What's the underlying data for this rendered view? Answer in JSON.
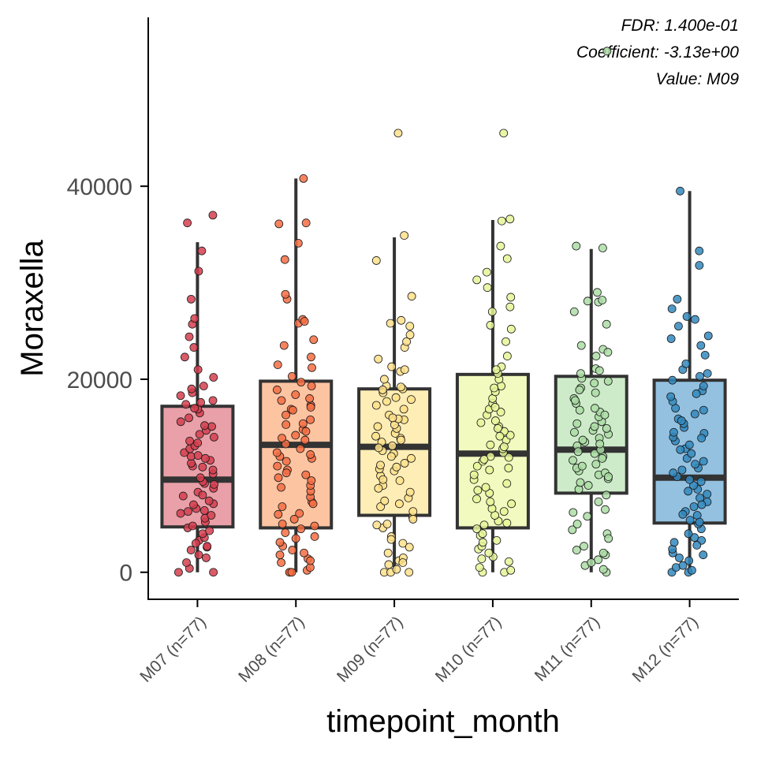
{
  "chart_data": {
    "type": "box",
    "xlabel": "timepoint_month",
    "ylabel": "Moraxella",
    "ylim": [
      -2800,
      57500
    ],
    "yticks": [
      0,
      20000,
      40000
    ],
    "ytick_labels": [
      "0",
      "20000",
      "40000"
    ],
    "grid": false,
    "legend": "none",
    "annotations": [
      "FDR: 1.400e-01",
      "Coefficient: -3.13e+00",
      "Value: M09"
    ],
    "categories": [
      "M07 (n=77)",
      "M08 (n=77)",
      "M09 (n=77)",
      "M10 (n=77)",
      "M11 (n=77)",
      "M12 (n=77)"
    ],
    "boxes": [
      {
        "name": "M07 (n=77)",
        "whisker_low": 0,
        "q1": 4700,
        "median": 9600,
        "q3": 17200,
        "whisker_high": 34200,
        "fill": "#E9A0A8",
        "point_color": "#D53E4F",
        "points": [
          0,
          0,
          400,
          1000,
          1500,
          1800,
          2300,
          2600,
          2700,
          3300,
          3600,
          4000,
          4300,
          4600,
          4800,
          5200,
          5600,
          6100,
          6400,
          6600,
          7100,
          7400,
          7900,
          8300,
          8700,
          9200,
          9400,
          9800,
          10200,
          10600,
          11000,
          11300,
          11600,
          12000,
          12400,
          12800,
          13100,
          13600,
          14000,
          14300,
          14700,
          15100,
          15600,
          16000,
          16500,
          16900,
          17000,
          17400,
          17800,
          18300,
          18600,
          19000,
          19300,
          20200,
          21000,
          22300,
          23300,
          24400,
          25700,
          26300,
          28300,
          31200,
          33300,
          36200,
          37000,
          3000,
          5900,
          8000,
          10900,
          12100,
          13400,
          15200,
          9100,
          7000,
          11800,
          6300,
          17600
        ]
      },
      {
        "name": "M08 (n=77)",
        "whisker_low": 0,
        "q1": 4600,
        "median": 13200,
        "q3": 19800,
        "whisker_high": 40800,
        "fill": "#FDC4A2",
        "point_color": "#F46D43",
        "points": [
          0,
          0,
          0,
          200,
          500,
          1000,
          1400,
          1800,
          2300,
          2700,
          3100,
          3700,
          4100,
          4500,
          5000,
          5500,
          6100,
          6800,
          7300,
          7800,
          8400,
          9000,
          9500,
          10100,
          10600,
          11000,
          11500,
          12000,
          12400,
          12800,
          13300,
          13700,
          14200,
          14800,
          15300,
          15800,
          16300,
          16900,
          17300,
          17800,
          18400,
          18900,
          19300,
          19700,
          21200,
          21500,
          22300,
          23500,
          24100,
          25800,
          26200,
          28300,
          28800,
          32400,
          34100,
          36100,
          36200,
          40800,
          2000,
          3500,
          6000,
          8800,
          11800,
          13900,
          15400,
          17100,
          9800,
          12200,
          18000,
          4800,
          7100,
          14600,
          16800,
          10300,
          26000,
          1200,
          20300
        ]
      },
      {
        "name": "M09 (n=77)",
        "whisker_low": 0,
        "q1": 5900,
        "median": 13000,
        "q3": 19000,
        "whisker_high": 34700,
        "fill": "#FEEDB5",
        "point_color": "#FEE08B",
        "points": [
          0,
          0,
          0,
          300,
          800,
          1200,
          1500,
          2000,
          3000,
          3700,
          4600,
          5000,
          5700,
          6300,
          7100,
          7700,
          8300,
          9000,
          9500,
          10000,
          10500,
          10900,
          11300,
          11800,
          12300,
          12600,
          13100,
          13500,
          13900,
          14400,
          14900,
          15300,
          15800,
          16300,
          16900,
          17300,
          17700,
          18100,
          18600,
          19000,
          19300,
          20000,
          20800,
          21300,
          22100,
          23300,
          23900,
          24600,
          25500,
          26100,
          28600,
          32300,
          34900,
          45500,
          1000,
          2600,
          4900,
          6800,
          8700,
          10700,
          12900,
          14100,
          15900,
          17900,
          18900,
          11100,
          9600,
          13700,
          7400,
          16000,
          5500,
          12000,
          19200,
          21000,
          25800,
          3400,
          15100
        ]
      },
      {
        "name": "M10 (n=77)",
        "whisker_low": 0,
        "q1": 4600,
        "median": 12300,
        "q3": 20500,
        "whisker_high": 36500,
        "fill": "#F2FABF",
        "point_color": "#E6F598",
        "points": [
          0,
          0,
          200,
          500,
          1100,
          1600,
          2400,
          2700,
          3300,
          3800,
          4500,
          4900,
          5300,
          5900,
          6600,
          7100,
          7600,
          8200,
          8800,
          9600,
          10100,
          10600,
          11000,
          11500,
          11900,
          12400,
          12800,
          13200,
          13700,
          14200,
          14600,
          15100,
          15700,
          16300,
          16900,
          17500,
          18000,
          18700,
          19300,
          20000,
          20600,
          21300,
          22400,
          23900,
          25200,
          25600,
          27000,
          27500,
          28500,
          29500,
          30300,
          31100,
          32500,
          33800,
          36400,
          36600,
          45500,
          1400,
          3100,
          6300,
          8500,
          10800,
          13000,
          14900,
          16600,
          19100,
          12000,
          9200,
          17100,
          5100,
          11700,
          14100,
          7300,
          2000,
          15500,
          21000,
          4000
        ]
      },
      {
        "name": "M11 (n=77)",
        "whisker_low": 0,
        "q1": 8200,
        "median": 12700,
        "q3": 20300,
        "whisker_high": 33500,
        "fill": "#CDEBC9",
        "point_color": "#ABDDA4",
        "points": [
          0,
          300,
          700,
          1300,
          1800,
          2300,
          2700,
          4000,
          4400,
          5000,
          5800,
          6200,
          7300,
          8000,
          8600,
          9300,
          9700,
          10100,
          10500,
          10800,
          11200,
          11600,
          12000,
          12300,
          12700,
          13100,
          13500,
          13900,
          14300,
          14700,
          15100,
          15600,
          16100,
          16600,
          17000,
          17500,
          18000,
          18600,
          19100,
          19600,
          20100,
          20600,
          21100,
          22400,
          23100,
          23500,
          25700,
          27000,
          28000,
          28100,
          28200,
          29000,
          33600,
          33800,
          54000,
          1000,
          2000,
          9000,
          10300,
          11800,
          13300,
          14900,
          16300,
          18900,
          20900,
          12500,
          15400,
          19800,
          9900,
          14500,
          17800,
          11000,
          22800,
          6500,
          3500,
          13700,
          16800
        ]
      },
      {
        "name": "M12 (n=77)",
        "whisker_low": 0,
        "q1": 5100,
        "median": 9800,
        "q3": 19900,
        "whisker_high": 39500,
        "fill": "#94C1E0",
        "point_color": "#3288BD",
        "points": [
          0,
          0,
          200,
          500,
          700,
          1200,
          1500,
          2000,
          2400,
          3100,
          3600,
          4000,
          4500,
          5000,
          5400,
          5900,
          6300,
          6800,
          7300,
          7700,
          8100,
          8600,
          9000,
          9400,
          9900,
          10300,
          10800,
          11200,
          11800,
          12300,
          12800,
          13200,
          13600,
          14000,
          14500,
          15000,
          15400,
          15900,
          16400,
          17000,
          17700,
          18200,
          18800,
          19300,
          19900,
          20300,
          21000,
          21600,
          22500,
          23500,
          24200,
          24500,
          25500,
          26200,
          26500,
          27300,
          28300,
          31800,
          33300,
          39500,
          1800,
          3300,
          6000,
          8400,
          10600,
          12700,
          14400,
          16800,
          18500,
          9600,
          11500,
          7000,
          13900,
          5200,
          20600,
          2800,
          15700
        ]
      }
    ]
  }
}
